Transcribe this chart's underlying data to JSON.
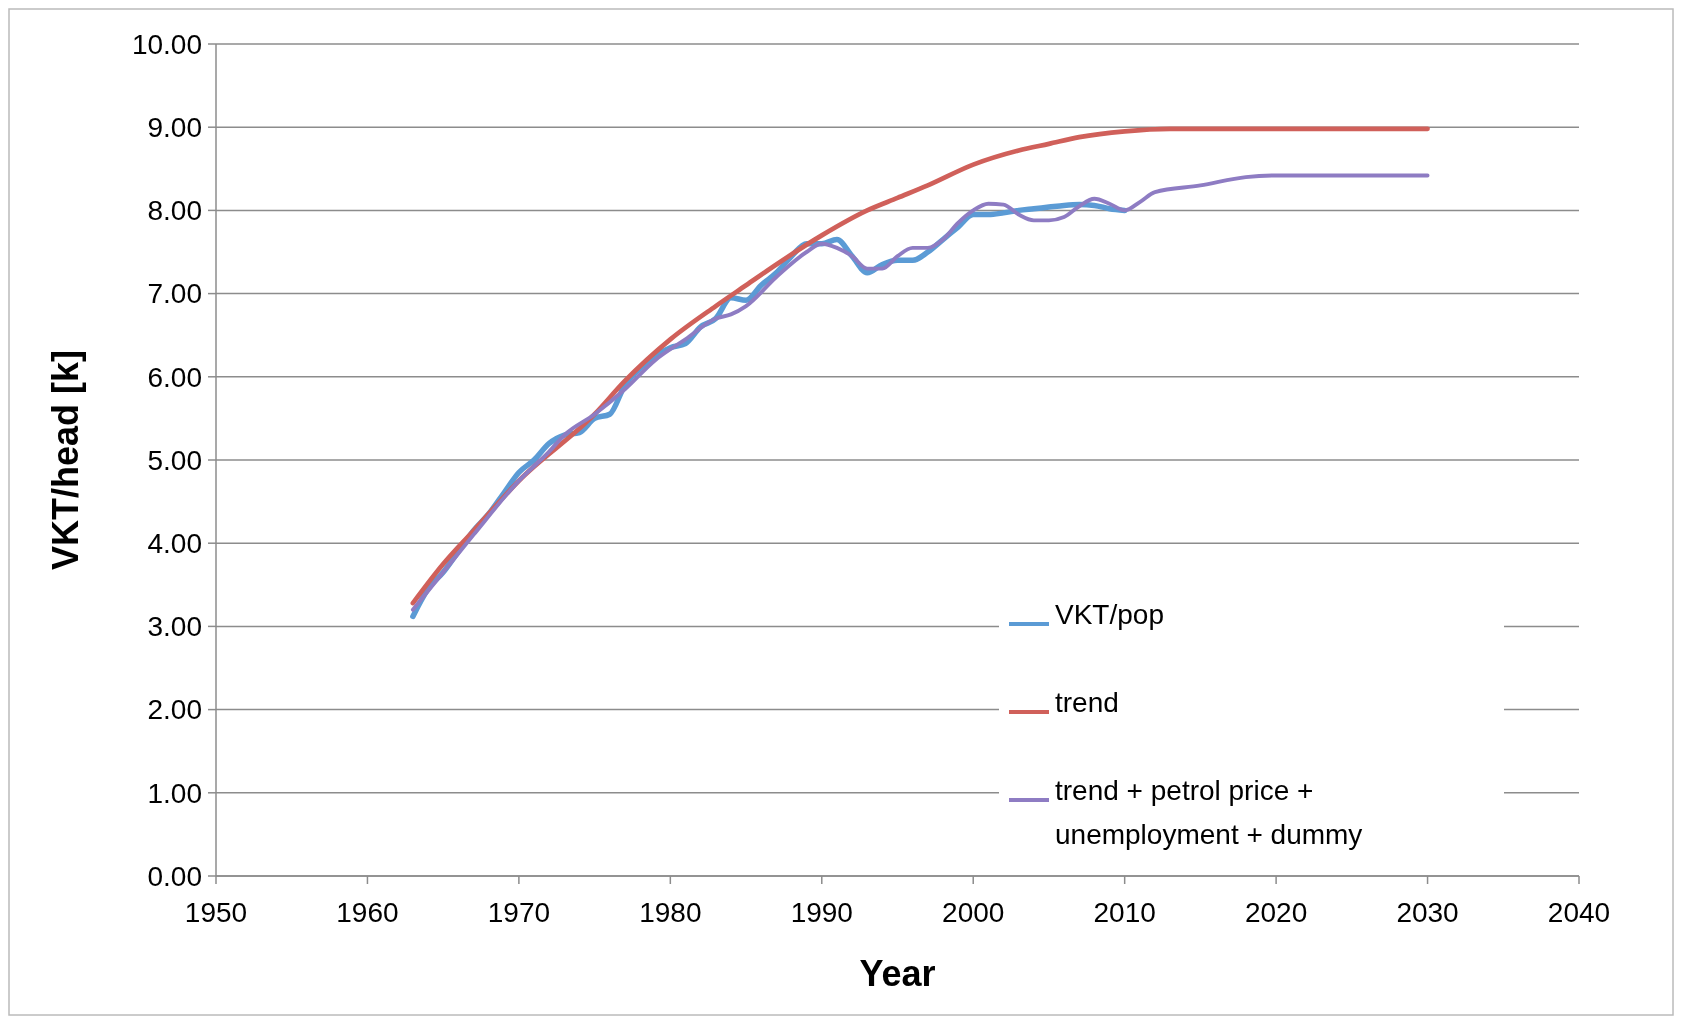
{
  "chart_data": {
    "type": "line",
    "xlabel": "Year",
    "ylabel": "VKT/head [k]",
    "xlim": [
      1950,
      2040
    ],
    "xticks": [
      1950,
      1960,
      1970,
      1980,
      1990,
      2000,
      2010,
      2020,
      2030,
      2040
    ],
    "ylim": [
      0,
      10
    ],
    "yticks": [
      {
        "value": 0,
        "label": "0.00"
      },
      {
        "value": 1,
        "label": "1.00"
      },
      {
        "value": 2,
        "label": "2.00"
      },
      {
        "value": 3,
        "label": "3.00"
      },
      {
        "value": 4,
        "label": "4.00"
      },
      {
        "value": 5,
        "label": "5.00"
      },
      {
        "value": 6,
        "label": "6.00"
      },
      {
        "value": 7,
        "label": "7.00"
      },
      {
        "value": 8,
        "label": "8.00"
      },
      {
        "value": 9,
        "label": "9.00"
      },
      {
        "value": 10,
        "label": "10.00"
      }
    ],
    "grid": "y",
    "legend": "bottom right",
    "series": [
      {
        "name": "VKT/pop",
        "color": "#5b9bd5",
        "x": [
          1963,
          1964,
          1965,
          1966,
          1967,
          1968,
          1969,
          1970,
          1971,
          1972,
          1973,
          1974,
          1975,
          1976,
          1977,
          1978,
          1979,
          1980,
          1981,
          1982,
          1983,
          1984,
          1985,
          1986,
          1987,
          1988,
          1989,
          1990,
          1991,
          1992,
          1993,
          1994,
          1995,
          1996,
          1997,
          1998,
          1999,
          2000,
          2001,
          2002,
          2003,
          2004,
          2005,
          2006,
          2007,
          2008,
          2009,
          2010
        ],
        "values": [
          3.12,
          3.45,
          3.65,
          3.9,
          4.15,
          4.35,
          4.6,
          4.85,
          5.0,
          5.2,
          5.3,
          5.33,
          5.5,
          5.55,
          5.9,
          6.1,
          6.25,
          6.35,
          6.4,
          6.6,
          6.7,
          6.95,
          6.92,
          7.1,
          7.25,
          7.45,
          7.6,
          7.6,
          7.65,
          7.45,
          7.25,
          7.35,
          7.4,
          7.4,
          7.5,
          7.65,
          7.8,
          7.95,
          7.95,
          7.97,
          8.0,
          8.02,
          8.04,
          8.06,
          8.07,
          8.06,
          8.02,
          8.0
        ]
      },
      {
        "name": "trend",
        "color": "#d0605a",
        "x": [
          1963,
          1965,
          1967,
          1970,
          1975,
          1977,
          1980,
          1983,
          1985,
          1987,
          1990,
          1993,
          1995,
          1997,
          2000,
          2003,
          2005,
          2007,
          2010,
          2013,
          2030
        ],
        "values": [
          3.28,
          3.75,
          4.15,
          4.75,
          5.55,
          5.95,
          6.45,
          6.85,
          7.1,
          7.35,
          7.7,
          8.0,
          8.15,
          8.3,
          8.55,
          8.72,
          8.8,
          8.88,
          8.95,
          8.98,
          8.98
        ]
      },
      {
        "name": "trend + petrol price + unemployment + dummy",
        "color": "#8e7cc3",
        "x": [
          1963,
          1965,
          1967,
          1970,
          1972,
          1973,
          1975,
          1977,
          1979,
          1981,
          1983,
          1984,
          1985,
          1987,
          1989,
          1990,
          1991,
          1992,
          1993,
          1994,
          1995,
          1996,
          1997,
          1998,
          1999,
          2000,
          2001,
          2002,
          2003,
          2004,
          2005,
          2006,
          2007,
          2008,
          2009,
          2010,
          2011,
          2012,
          2015,
          2018,
          2020,
          2030
        ],
        "values": [
          3.2,
          3.65,
          4.1,
          4.75,
          5.1,
          5.3,
          5.55,
          5.85,
          6.2,
          6.45,
          6.7,
          6.75,
          6.85,
          7.2,
          7.5,
          7.6,
          7.55,
          7.45,
          7.3,
          7.3,
          7.45,
          7.55,
          7.55,
          7.65,
          7.85,
          8.0,
          8.08,
          8.07,
          7.95,
          7.88,
          7.88,
          7.92,
          8.05,
          8.14,
          8.08,
          8.0,
          8.1,
          8.22,
          8.3,
          8.4,
          8.42,
          8.42
        ]
      }
    ]
  }
}
